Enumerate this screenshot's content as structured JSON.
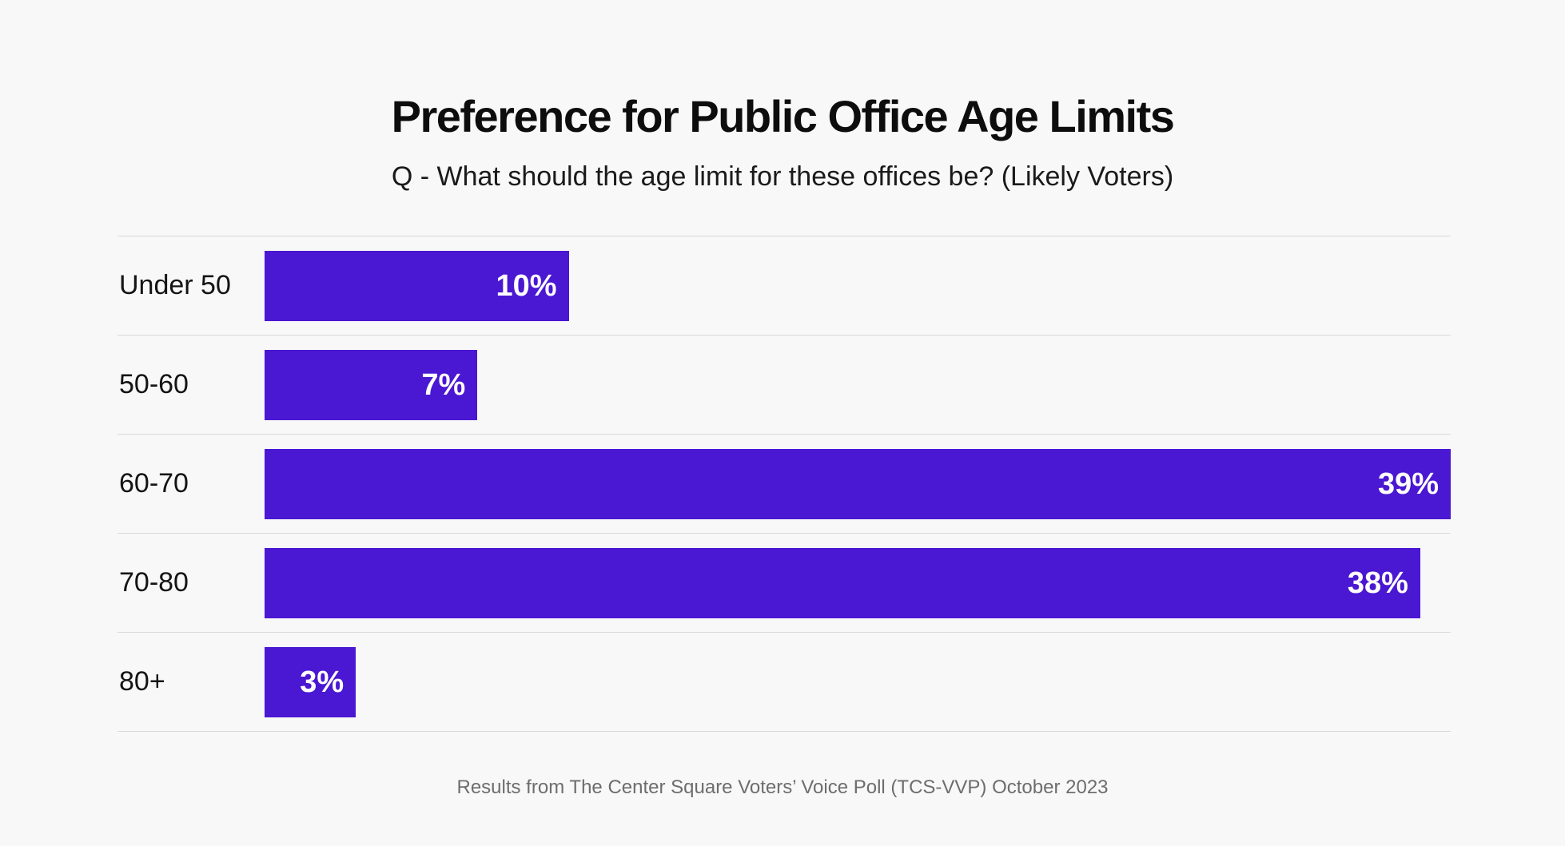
{
  "page": {
    "background": "#f8f8f8",
    "accent": "#4a17d2",
    "divider_color": "#d9d9d9"
  },
  "header": {
    "title": "Preference for Public Office Age Limits",
    "subtitle": "Q - What should the age limit for these offices be? (Likely Voters)"
  },
  "chart_data": {
    "type": "bar",
    "orientation": "horizontal",
    "title": "Preference for Public Office Age Limits",
    "subtitle": "Q - What should the age limit for these offices be? (Likely Voters)",
    "categories": [
      "Under 50",
      "50-60",
      "60-70",
      "70-80",
      "80+"
    ],
    "values": [
      10,
      7,
      39,
      38,
      3
    ],
    "value_labels": [
      "10%",
      "7%",
      "39%",
      "38%",
      "3%"
    ],
    "xlim": [
      0,
      39
    ],
    "xlabel": "",
    "ylabel": "",
    "bar_color": "#4a17d2",
    "value_label_color": "#ffffff",
    "grid": "row-dividers",
    "legend": "none"
  },
  "footer": {
    "source": "Results from The Center Square Voters’ Voice Poll (TCS-VVP) October 2023"
  }
}
